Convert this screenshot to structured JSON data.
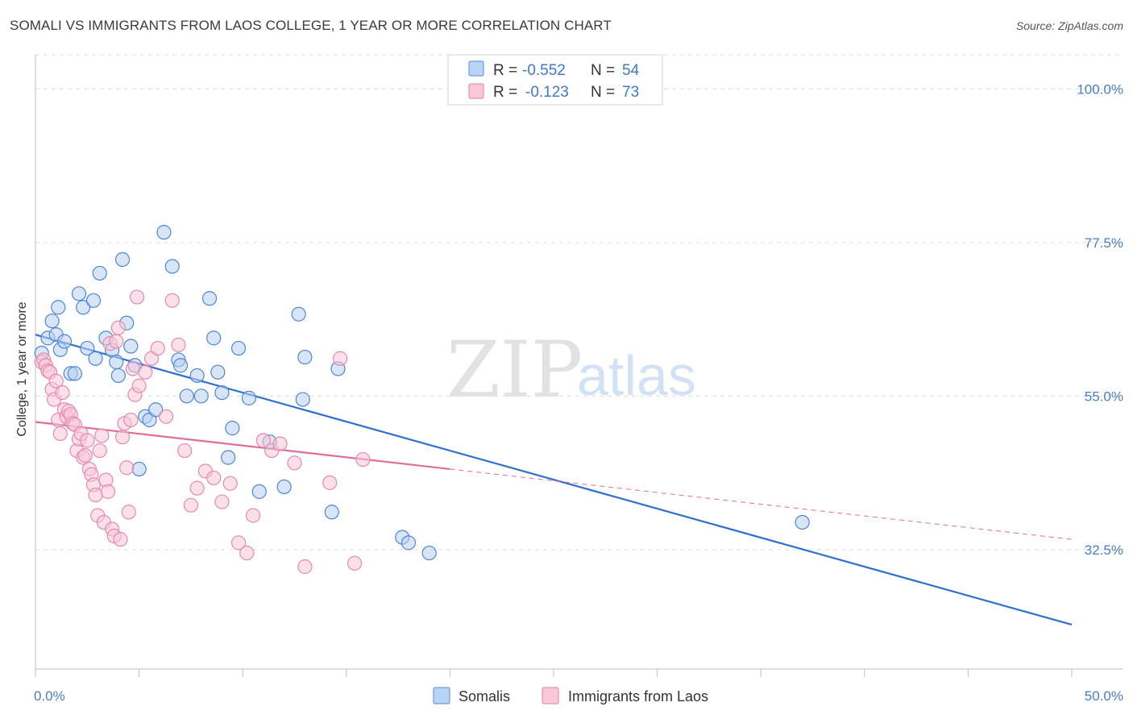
{
  "title": "SOMALI VS IMMIGRANTS FROM LAOS COLLEGE, 1 YEAR OR MORE CORRELATION CHART",
  "source": "Source: ZipAtlas.com",
  "watermark": {
    "zip": "ZIP",
    "atlas": "atlas"
  },
  "chart_data": {
    "type": "scatter",
    "xlabel": "",
    "ylabel": "College, 1 year or more",
    "xlim": [
      0,
      50
    ],
    "ylim": [
      15,
      105
    ],
    "x_tick_labels": [
      "0.0%",
      "50.0%"
    ],
    "y_ticks": [
      {
        "value": 100.0,
        "label": "100.0%"
      },
      {
        "value": 77.5,
        "label": "77.5%"
      },
      {
        "value": 55.0,
        "label": "55.0%"
      },
      {
        "value": 32.5,
        "label": "32.5%"
      }
    ],
    "grid": "horizontal-dashed",
    "legend_top": [
      {
        "r_label": "R =",
        "r_value": "-0.552",
        "n_label": "N =",
        "n_value": "54",
        "color": "#6d9ddb",
        "fill": "#b9d3f3"
      },
      {
        "r_label": "R =",
        "r_value": "-0.123",
        "n_label": "N =",
        "n_value": "73",
        "color": "#e890b0",
        "fill": "#f8c8d8"
      }
    ],
    "series": [
      {
        "name": "Somalis",
        "color": "#4d86d4",
        "fill": "#b7d0f0",
        "line_color": "#2e6fcf",
        "trend": {
          "x0": 0,
          "y0": 64.0,
          "x1": 50,
          "y1": 21.5
        },
        "points": [
          [
            0.3,
            61.3
          ],
          [
            0.6,
            63.5
          ],
          [
            0.8,
            66.0
          ],
          [
            1.0,
            64.0
          ],
          [
            1.1,
            68.0
          ],
          [
            1.2,
            61.8
          ],
          [
            1.4,
            63.0
          ],
          [
            1.7,
            58.3
          ],
          [
            1.9,
            58.3
          ],
          [
            2.1,
            70.0
          ],
          [
            2.3,
            68.0
          ],
          [
            2.5,
            62.0
          ],
          [
            2.8,
            69.0
          ],
          [
            2.9,
            60.5
          ],
          [
            3.1,
            73.0
          ],
          [
            3.4,
            63.5
          ],
          [
            3.7,
            61.7
          ],
          [
            3.9,
            60.0
          ],
          [
            4.0,
            58.0
          ],
          [
            4.2,
            75.0
          ],
          [
            4.4,
            65.7
          ],
          [
            4.6,
            62.3
          ],
          [
            4.8,
            59.5
          ],
          [
            5.0,
            44.3
          ],
          [
            5.3,
            52.0
          ],
          [
            5.5,
            51.5
          ],
          [
            5.8,
            53.0
          ],
          [
            6.2,
            79.0
          ],
          [
            6.6,
            74.0
          ],
          [
            6.9,
            60.3
          ],
          [
            7.0,
            59.5
          ],
          [
            7.3,
            55.0
          ],
          [
            7.8,
            58.0
          ],
          [
            8.0,
            55.0
          ],
          [
            8.4,
            69.3
          ],
          [
            8.6,
            63.5
          ],
          [
            8.8,
            58.5
          ],
          [
            9.0,
            55.5
          ],
          [
            9.3,
            46.0
          ],
          [
            9.5,
            50.3
          ],
          [
            9.8,
            62.0
          ],
          [
            10.3,
            54.7
          ],
          [
            10.8,
            41.0
          ],
          [
            11.3,
            48.3
          ],
          [
            12.0,
            41.7
          ],
          [
            12.7,
            67.0
          ],
          [
            12.9,
            54.5
          ],
          [
            13.0,
            60.7
          ],
          [
            14.3,
            38.0
          ],
          [
            14.6,
            59.0
          ],
          [
            17.7,
            34.3
          ],
          [
            18.0,
            33.5
          ],
          [
            19.0,
            32.0
          ],
          [
            37.0,
            36.5
          ]
        ]
      },
      {
        "name": "Immigrants from Laos",
        "color": "#e58aad",
        "fill": "#f7c6d7",
        "line_color": "#e06c98",
        "trend": {
          "x0": 0,
          "y0": 51.2,
          "x1": 20,
          "y1": 44.3
        },
        "trend_dashed": {
          "x0": 20,
          "y0": 44.3,
          "x1": 50,
          "y1": 34.0
        },
        "points": [
          [
            0.3,
            60.0
          ],
          [
            0.4,
            60.3
          ],
          [
            0.5,
            59.5
          ],
          [
            0.6,
            58.7
          ],
          [
            0.7,
            58.5
          ],
          [
            0.8,
            56.0
          ],
          [
            0.9,
            54.5
          ],
          [
            1.0,
            57.2
          ],
          [
            1.1,
            51.5
          ],
          [
            1.2,
            49.5
          ],
          [
            1.3,
            55.5
          ],
          [
            1.4,
            53.0
          ],
          [
            1.5,
            52.0
          ],
          [
            1.6,
            52.8
          ],
          [
            1.7,
            52.3
          ],
          [
            1.8,
            51.0
          ],
          [
            1.9,
            50.8
          ],
          [
            2.0,
            47.0
          ],
          [
            2.1,
            48.7
          ],
          [
            2.2,
            49.5
          ],
          [
            2.3,
            46.0
          ],
          [
            2.4,
            46.3
          ],
          [
            2.5,
            48.5
          ],
          [
            2.6,
            44.3
          ],
          [
            2.7,
            43.5
          ],
          [
            2.8,
            42.0
          ],
          [
            2.9,
            40.5
          ],
          [
            3.0,
            37.5
          ],
          [
            3.1,
            47.0
          ],
          [
            3.2,
            49.2
          ],
          [
            3.3,
            36.5
          ],
          [
            3.4,
            42.7
          ],
          [
            3.5,
            41.0
          ],
          [
            3.6,
            62.7
          ],
          [
            3.7,
            35.5
          ],
          [
            3.8,
            34.5
          ],
          [
            3.9,
            63.0
          ],
          [
            4.0,
            65.0
          ],
          [
            4.1,
            34.0
          ],
          [
            4.2,
            49.0
          ],
          [
            4.3,
            51.0
          ],
          [
            4.4,
            44.5
          ],
          [
            4.5,
            38.0
          ],
          [
            4.6,
            51.5
          ],
          [
            4.7,
            59.0
          ],
          [
            4.8,
            55.2
          ],
          [
            4.9,
            69.5
          ],
          [
            5.0,
            56.5
          ],
          [
            5.3,
            58.5
          ],
          [
            5.6,
            60.5
          ],
          [
            5.9,
            62.0
          ],
          [
            6.3,
            52.0
          ],
          [
            6.6,
            69.0
          ],
          [
            6.9,
            62.5
          ],
          [
            7.2,
            47.0
          ],
          [
            7.5,
            39.0
          ],
          [
            7.8,
            41.5
          ],
          [
            8.2,
            44.0
          ],
          [
            8.6,
            43.0
          ],
          [
            9.0,
            39.5
          ],
          [
            9.4,
            42.2
          ],
          [
            9.8,
            33.5
          ],
          [
            10.2,
            32.0
          ],
          [
            10.5,
            37.5
          ],
          [
            11.0,
            48.5
          ],
          [
            11.4,
            47.0
          ],
          [
            11.8,
            48.0
          ],
          [
            12.5,
            45.2
          ],
          [
            13.0,
            30.0
          ],
          [
            14.2,
            42.3
          ],
          [
            14.7,
            60.5
          ],
          [
            15.4,
            30.5
          ],
          [
            15.8,
            45.7
          ]
        ]
      }
    ]
  }
}
